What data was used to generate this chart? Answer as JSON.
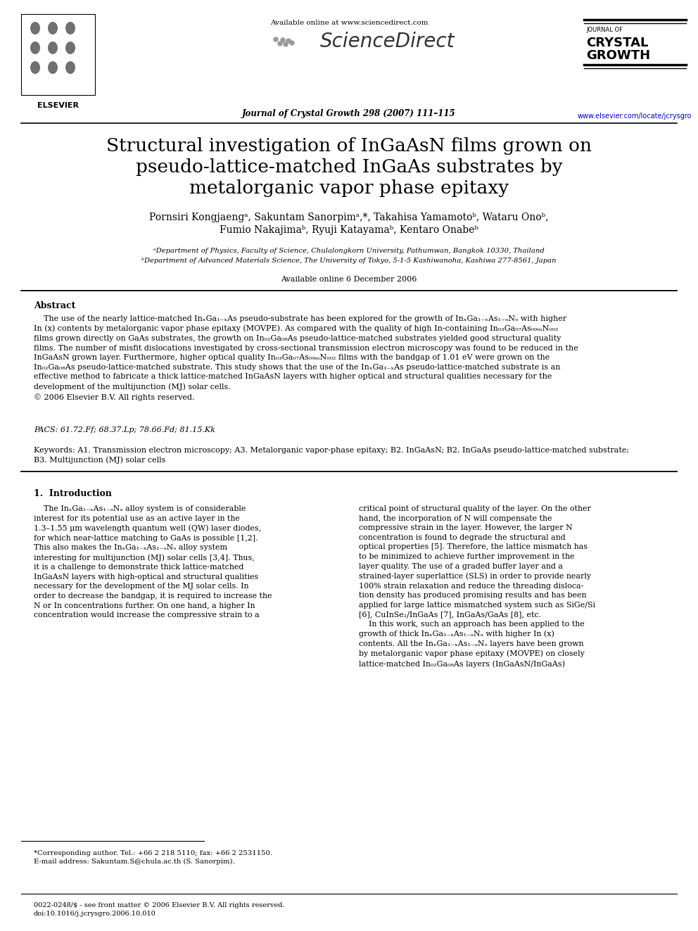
{
  "bg_color": "#ffffff",
  "title_line1": "Structural investigation of InGaAsN films grown on",
  "title_line2": "pseudo-lattice-matched InGaAs substrates by",
  "title_line3": "metalorganic vapor phase epitaxy",
  "authors_line1": "Pornsiri Kongjaengᵃ, Sakuntam Sanorpimᵃ,*, Takahisa Yamamotoᵇ, Wataru Onoᵇ,",
  "authors_line2": "Fumio Nakajimaᵇ, Ryuji Katayamaᵇ, Kentaro Onabeᵇ",
  "affil_a": "ᵃDepartment of Physics, Faculty of Science, Chulalongkorn University, Pathumwan, Bangkok 10330, Thailand",
  "affil_b": "ᵇDepartment of Advanced Materials Science, The University of Tokyo, 5-1-5 Kashiwanoha, Kashiwa 277-8561, Japan",
  "available_online": "Available online 6 December 2006",
  "journal_header": "Journal of Crystal Growth 298 (2007) 111–115",
  "available_online_header": "Available online at www.sciencedirect.com",
  "website": "www.elsevier.com/locate/jcrysgro",
  "abstract_title": "Abstract",
  "pacs": "PACS: 61.72.Ff; 68.37.Lp; 78.66.Fd; 81.15.Kk",
  "section1_title": "1.  Introduction",
  "footer_text": "0022-0248/$ - see front matter © 2006 Elsevier B.V. All rights reserved.\ndoi:10.1016/j.jcrysgro.2006.10.010",
  "corresponding_author": "*Corresponding author. Tel.: +66 2 218 5110; fax: +66 2 2531150.\nE-mail address: Sakuntam.S@chula.ac.th (S. Sanorpim)."
}
